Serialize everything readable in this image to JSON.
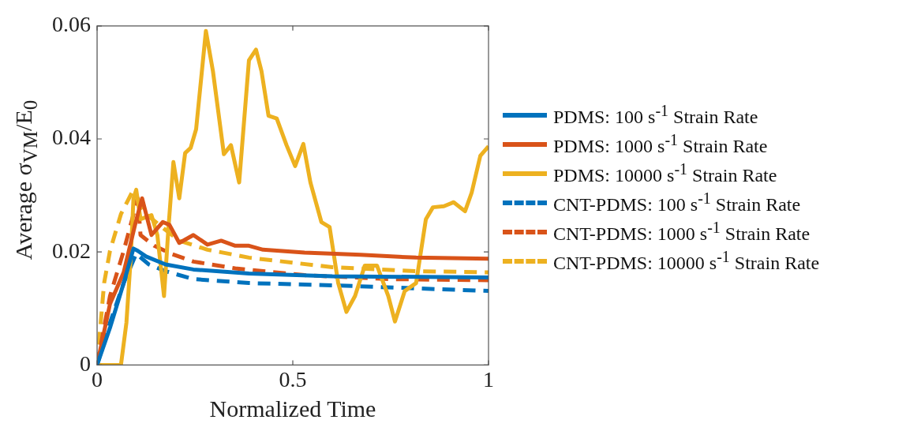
{
  "chart_data": {
    "type": "line",
    "xlabel": "Normalized Time",
    "ylabel": "Average σ$_{VM}$/E$_{0}$",
    "xlim": [
      0,
      1
    ],
    "xticks": [
      0,
      0.5,
      1
    ],
    "ylim": [
      0,
      0.06
    ],
    "yticks": [
      0,
      0.02,
      0.04,
      0.06
    ],
    "grid": false,
    "legend": "right",
    "marker": "none",
    "series": [
      {
        "name": "PDMS: 100 s$^{-1}$ Strain Rate",
        "color": "#0072bd",
        "line_style": "solid",
        "x": [
          0,
          0.033,
          0.068,
          0.093,
          0.104,
          0.125,
          0.175,
          0.246,
          0.388,
          0.601,
          1.0
        ],
        "values": [
          0,
          0.0066,
          0.0145,
          0.0206,
          0.0202,
          0.0192,
          0.0178,
          0.0169,
          0.0162,
          0.0157,
          0.0155
        ]
      },
      {
        "name": "PDMS: 1000 s$^{-1}$ Strain Rate",
        "color": "#d95319",
        "line_style": "solid",
        "x": [
          0,
          0.033,
          0.068,
          0.097,
          0.115,
          0.139,
          0.168,
          0.185,
          0.21,
          0.246,
          0.282,
          0.317,
          0.353,
          0.388,
          0.424,
          0.53,
          0.673,
          0.815,
          1.0
        ],
        "values": [
          0,
          0.0108,
          0.0164,
          0.0248,
          0.0295,
          0.023,
          0.0253,
          0.0248,
          0.0216,
          0.023,
          0.0213,
          0.022,
          0.0211,
          0.0211,
          0.0204,
          0.0199,
          0.0195,
          0.019,
          0.0188
        ]
      },
      {
        "name": "PDMS: 10000 s$^{-1}$ Strain Rate",
        "color": "#edb120",
        "line_style": "solid",
        "x": [
          0,
          0.061,
          0.075,
          0.086,
          0.093,
          0.1,
          0.111,
          0.139,
          0.154,
          0.171,
          0.182,
          0.195,
          0.21,
          0.225,
          0.239,
          0.253,
          0.278,
          0.296,
          0.324,
          0.342,
          0.363,
          0.388,
          0.406,
          0.42,
          0.438,
          0.459,
          0.484,
          0.506,
          0.527,
          0.545,
          0.573,
          0.594,
          0.616,
          0.637,
          0.659,
          0.684,
          0.715,
          0.744,
          0.761,
          0.786,
          0.815,
          0.84,
          0.858,
          0.886,
          0.911,
          0.94,
          0.957,
          0.979,
          1.0
        ],
        "values": [
          0,
          0,
          0.0075,
          0.019,
          0.0295,
          0.031,
          0.0258,
          0.0265,
          0.023,
          0.0122,
          0.0239,
          0.0359,
          0.0295,
          0.0375,
          0.0384,
          0.0417,
          0.0591,
          0.052,
          0.0373,
          0.0389,
          0.0323,
          0.0539,
          0.0558,
          0.052,
          0.0441,
          0.0436,
          0.0389,
          0.0352,
          0.0391,
          0.0323,
          0.0253,
          0.0244,
          0.0145,
          0.0094,
          0.0122,
          0.0176,
          0.0176,
          0.0122,
          0.0077,
          0.0131,
          0.0145,
          0.0258,
          0.0279,
          0.0281,
          0.0288,
          0.0272,
          0.0305,
          0.037,
          0.0387
        ]
      },
      {
        "name": "CNT-PDMS: 100 s$^{-1}$ Strain Rate",
        "color": "#0072bd",
        "line_style": "dashed",
        "x": [
          0,
          0.033,
          0.068,
          0.1,
          0.132,
          0.175,
          0.246,
          0.388,
          0.601,
          1.0
        ],
        "values": [
          0,
          0.0075,
          0.0145,
          0.0197,
          0.0178,
          0.0166,
          0.0152,
          0.0145,
          0.0141,
          0.0131
        ]
      },
      {
        "name": "CNT-PDMS: 1000 s$^{-1}$ Strain Rate",
        "color": "#d95319",
        "line_style": "dashed",
        "x": [
          0,
          0.033,
          0.068,
          0.104,
          0.111,
          0.146,
          0.189,
          0.246,
          0.353,
          0.53,
          0.744,
          1.0
        ],
        "values": [
          0,
          0.0122,
          0.0202,
          0.0295,
          0.023,
          0.0211,
          0.0197,
          0.0183,
          0.0171,
          0.0159,
          0.0152,
          0.015
        ]
      },
      {
        "name": "CNT-PDMS: 10000 s$^{-1}$ Strain Rate",
        "color": "#edb120",
        "line_style": "dashed",
        "x": [
          0,
          0.018,
          0.033,
          0.061,
          0.089,
          0.104,
          0.125,
          0.175,
          0.21,
          0.282,
          0.388,
          0.601,
          0.815,
          1.0
        ],
        "values": [
          0,
          0.0145,
          0.0202,
          0.0267,
          0.0305,
          0.0286,
          0.0267,
          0.0239,
          0.022,
          0.0204,
          0.019,
          0.0173,
          0.0166,
          0.0164
        ]
      }
    ]
  }
}
